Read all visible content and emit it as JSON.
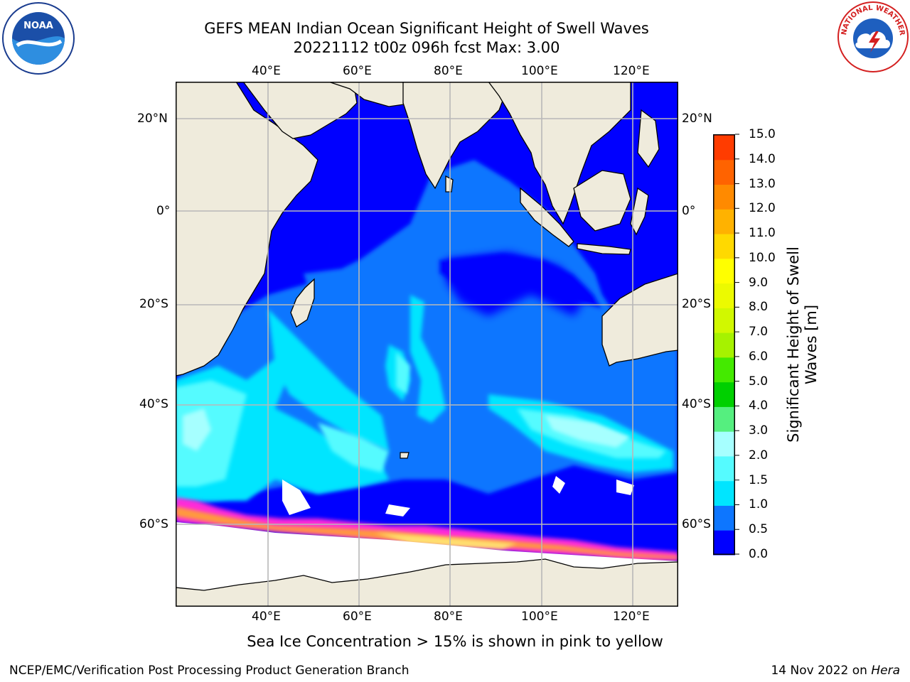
{
  "title": {
    "line1": "GEFS MEAN Indian Ocean Significant Height of Swell Waves",
    "line2": "20221112 t00z 096h fcst   Max: 3.00"
  },
  "logos": {
    "left": {
      "icon": "noaa-logo",
      "text": "NOAA"
    },
    "right": {
      "icon": "nws-logo",
      "text": "NATIONAL WEATHER SERVICE"
    }
  },
  "map": {
    "projection": "plate-carree",
    "lon_range": [
      20,
      129
    ],
    "lat_range": [
      -74,
      27
    ],
    "lon_labels_top": [
      "40°E",
      "60°E",
      "80°E",
      "100°E",
      "120°E"
    ],
    "lon_labels_bottom": [
      "40°E",
      "60°E",
      "80°E",
      "100°E",
      "120°E"
    ],
    "lat_labels_left": [
      "20°N",
      "0°",
      "20°S",
      "40°S",
      "60°S"
    ],
    "lat_labels_right": [
      "20°N",
      "0°",
      "20°S",
      "40°S",
      "60°S"
    ],
    "gridlines": true,
    "land_color": "#efebdc",
    "coast_color": "#000000"
  },
  "colorbar": {
    "title_line1": "Significant Height of Swell",
    "title_line2": "Waves [m]",
    "ticks": [
      "0.0",
      "0.5",
      "1.0",
      "1.5",
      "2.0",
      "3.0",
      "4.0",
      "5.0",
      "6.0",
      "7.0",
      "8.0",
      "9.0",
      "10.0",
      "11.0",
      "12.0",
      "13.0",
      "14.0",
      "15.0"
    ],
    "colors": [
      "#0000ff",
      "#0d76ff",
      "#00e5ff",
      "#55fbff",
      "#a6ffff",
      "#55ef7f",
      "#00d000",
      "#44ea00",
      "#a6f200",
      "#d1f800",
      "#ecfa00",
      "#ffff00",
      "#ffd900",
      "#ffb200",
      "#ff8a00",
      "#ff6300",
      "#ff3c00"
    ]
  },
  "note": "Sea Ice Concentration > 15% is shown in pink to yellow",
  "footer": {
    "left": "NCEP/EMC/Verification Post Processing Product Generation Branch",
    "right_prefix": "14 Nov 2022 on ",
    "right_italic": "Hera"
  }
}
